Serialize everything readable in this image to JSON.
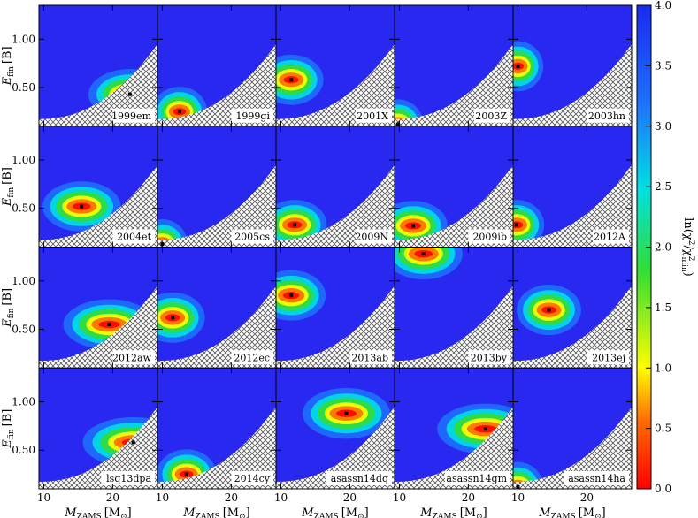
{
  "chart_data": {
    "type": "heatmap",
    "layout": {
      "rows": 4,
      "cols": 5
    },
    "xlabel": "M",
    "xlabel_sub": "ZAMS",
    "xlabel_unit": "[M",
    "xlabel_unit_sub": "⊙",
    "xlabel_unit_end": "]",
    "ylabel": "E",
    "ylabel_sub": "fin",
    "ylabel_unit": "[B]",
    "xlim": [
      9.3,
      26.5
    ],
    "ylim": [
      0.1,
      1.35
    ],
    "x_ticks": [
      10,
      20
    ],
    "y_ticks": [
      0.5,
      1.0
    ],
    "x_tick_labels": [
      "10",
      "20"
    ],
    "y_tick_labels": [
      "0.50",
      "1.00"
    ],
    "colorbar": {
      "label": "ln(χ²/χ²min)",
      "label_main": "ln(χ",
      "label_sup": "2",
      "label_mid": "/χ",
      "label_sub2": "min",
      "label_end": ")",
      "range": [
        0.0,
        4.0
      ],
      "ticks": [
        0.0,
        0.5,
        1.0,
        1.5,
        2.0,
        2.5,
        3.0,
        3.5,
        4.0
      ],
      "tick_labels": [
        "0.0",
        "0.5",
        "1.0",
        "1.5",
        "2.0",
        "2.5",
        "3.0",
        "3.5",
        "4.0"
      ]
    },
    "panels": [
      {
        "name": "1999em",
        "best": [
          22.5,
          0.43
        ],
        "core": [
          0.6,
          18,
          0.62
        ],
        "hatched": true
      },
      {
        "name": "1999gi",
        "best": [
          12.5,
          0.25
        ],
        "core": [
          0.3,
          12,
          0.4
        ],
        "hatched": true
      },
      {
        "name": "2001X",
        "best": [
          11.5,
          0.58
        ],
        "core": [
          0.5,
          14,
          0.6
        ],
        "hatched": true
      },
      {
        "name": "2003Z",
        "best": [
          9.8,
          0.12
        ],
        "core": [
          0.2,
          11,
          0.25
        ],
        "hatched": true
      },
      {
        "name": "2003hn",
        "best": [
          10.0,
          0.72
        ],
        "core": [
          0.4,
          11,
          0.7
        ],
        "hatched": true
      },
      {
        "name": "2004et",
        "best": [
          15.5,
          0.52
        ],
        "core": [
          0.4,
          17,
          0.55
        ],
        "hatched": true
      },
      {
        "name": "2005cs",
        "best": [
          10.0,
          0.13
        ],
        "core": [
          0.2,
          11,
          0.25
        ],
        "hatched": true
      },
      {
        "name": "2009N",
        "best": [
          12.0,
          0.33
        ],
        "core": [
          0.3,
          14,
          0.45
        ],
        "hatched": true
      },
      {
        "name": "2009ib",
        "best": [
          12.0,
          0.32
        ],
        "core": [
          0.3,
          15,
          0.45
        ],
        "hatched": true
      },
      {
        "name": "2012A",
        "best": [
          9.8,
          0.33
        ],
        "core": [
          0.3,
          12,
          0.45
        ],
        "hatched": true
      },
      {
        "name": "2012aw",
        "best": [
          19.5,
          0.55
        ],
        "core": [
          0.5,
          20,
          0.6
        ],
        "hatched": true
      },
      {
        "name": "2012ec",
        "best": [
          11.5,
          0.62
        ],
        "core": [
          0.6,
          14,
          0.75
        ],
        "hatched": true
      },
      {
        "name": "2013ab",
        "best": [
          11.5,
          0.85
        ],
        "core": [
          0.6,
          15,
          0.75
        ],
        "hatched": true
      },
      {
        "name": "2013by",
        "best": [
          13.5,
          1.28
        ],
        "core": [
          1.1,
          17,
          0.75
        ],
        "hatched": true
      },
      {
        "name": "2013ej",
        "best": [
          14.5,
          0.7
        ],
        "core": [
          0.7,
          14,
          0.8
        ],
        "hatched": true
      },
      {
        "name": "lsq13dpa",
        "best": [
          23.0,
          0.58
        ],
        "core": [
          0.6,
          22,
          0.65
        ],
        "hatched": true
      },
      {
        "name": "2014cy",
        "best": [
          13.5,
          0.25
        ],
        "core": [
          0.3,
          13,
          0.45
        ],
        "hatched": true
      },
      {
        "name": "asassn14dq",
        "best": [
          19.5,
          0.88
        ],
        "core": [
          0.9,
          19,
          0.8
        ],
        "hatched": true
      },
      {
        "name": "asassn14gm",
        "best": [
          22.5,
          0.72
        ],
        "core": [
          0.75,
          21,
          0.7
        ],
        "hatched": true
      },
      {
        "name": "asassn14ha",
        "best": [
          10.0,
          0.12
        ],
        "core": [
          0.2,
          11,
          0.3
        ],
        "hatched": true
      }
    ]
  }
}
